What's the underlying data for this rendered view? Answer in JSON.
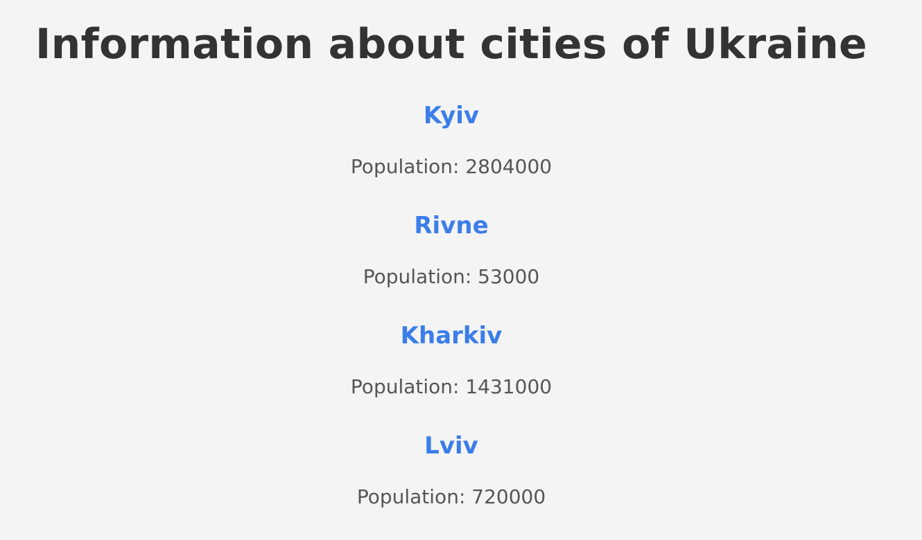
{
  "page": {
    "title": "Information about cities of Ukraine"
  },
  "cities": [
    {
      "name": "Kyiv",
      "population_text": "Population: 2804000"
    },
    {
      "name": "Rivne",
      "population_text": "Population: 53000"
    },
    {
      "name": "Kharkiv",
      "population_text": "Population: 1431000"
    },
    {
      "name": "Lviv",
      "population_text": "Population: 720000"
    }
  ],
  "colors": {
    "background": "#f4f4f4",
    "title": "#333333",
    "city_name": "#3b7de9",
    "population": "#555555"
  }
}
